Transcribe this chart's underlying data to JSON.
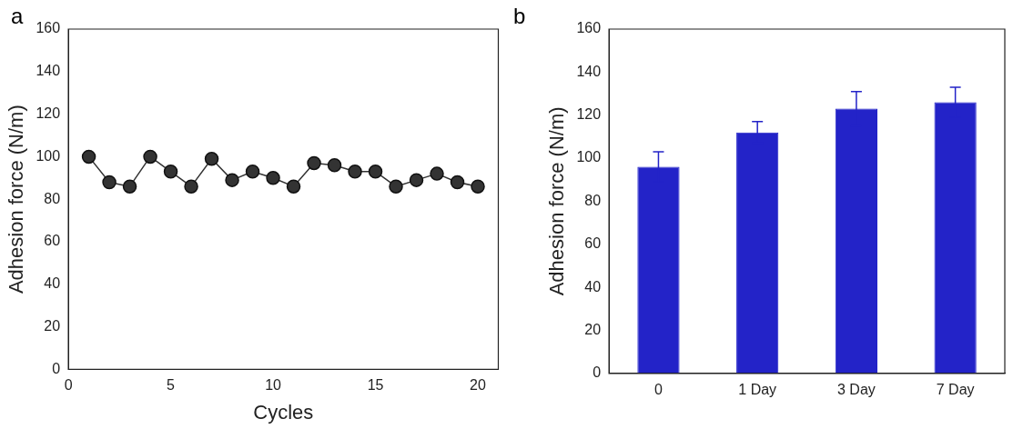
{
  "chart_data": [
    {
      "type": "line",
      "title": "a",
      "xlabel": "Cycles",
      "ylabel": "Adhesion force (N/m)",
      "x": [
        1,
        2,
        3,
        4,
        5,
        6,
        7,
        8,
        9,
        10,
        11,
        12,
        13,
        14,
        15,
        16,
        17,
        18,
        19,
        20
      ],
      "series": [
        {
          "color": "#333333",
          "values": [
            100,
            88,
            86,
            100,
            93,
            86,
            99,
            89,
            93,
            90,
            86,
            97,
            96,
            93,
            93,
            86,
            89,
            92,
            88,
            86
          ]
        }
      ],
      "xlim": [
        0,
        21
      ],
      "xticks": [
        0,
        5,
        10,
        15,
        20
      ],
      "ylim": [
        0,
        160
      ],
      "yticks": [
        0,
        20,
        40,
        60,
        80,
        100,
        120,
        140,
        160
      ],
      "marker": "circle",
      "line_style": "solid",
      "grid": false,
      "legend": false
    },
    {
      "type": "bar",
      "title": "b",
      "ylabel": "Adhesion force (N/m)",
      "categories": [
        "0",
        "1 Day",
        "3 Day",
        "7 Day"
      ],
      "series": [
        {
          "color": "#2323c8",
          "values": [
            96,
            112,
            123,
            126
          ],
          "errors": [
            7,
            5,
            8,
            7
          ]
        }
      ],
      "ylim": [
        0,
        160
      ],
      "yticks": [
        0,
        20,
        40,
        60,
        80,
        100,
        120,
        140,
        160
      ],
      "grid": false,
      "legend": false
    }
  ]
}
